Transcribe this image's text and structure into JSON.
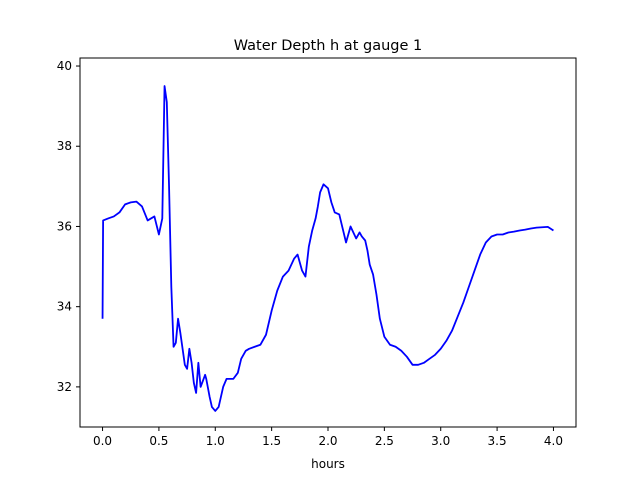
{
  "chart_data": {
    "type": "line",
    "title": "Water Depth h at gauge 1",
    "xlabel": "hours",
    "ylabel": "",
    "xlim": [
      -0.2,
      4.2
    ],
    "ylim": [
      31.0,
      40.2
    ],
    "xticks": [
      0.0,
      0.5,
      1.0,
      1.5,
      2.0,
      2.5,
      3.0,
      3.5,
      4.0
    ],
    "xtick_labels": [
      "0.0",
      "0.5",
      "1.0",
      "1.5",
      "2.0",
      "2.5",
      "3.0",
      "3.5",
      "4.0"
    ],
    "yticks": [
      32,
      34,
      36,
      38,
      40
    ],
    "ytick_labels": [
      "32",
      "34",
      "36",
      "38",
      "40"
    ],
    "grid": false,
    "series": [
      {
        "color": "#0000ff",
        "x": [
          0.0,
          0.005,
          0.05,
          0.1,
          0.15,
          0.2,
          0.25,
          0.3,
          0.35,
          0.4,
          0.43,
          0.46,
          0.5,
          0.53,
          0.55,
          0.57,
          0.59,
          0.61,
          0.63,
          0.65,
          0.67,
          0.69,
          0.71,
          0.73,
          0.75,
          0.77,
          0.79,
          0.81,
          0.83,
          0.85,
          0.87,
          0.89,
          0.91,
          0.92,
          0.93,
          0.95,
          0.97,
          1.0,
          1.03,
          1.07,
          1.1,
          1.13,
          1.16,
          1.2,
          1.23,
          1.27,
          1.3,
          1.35,
          1.4,
          1.45,
          1.5,
          1.55,
          1.6,
          1.65,
          1.7,
          1.73,
          1.77,
          1.8,
          1.83,
          1.86,
          1.89,
          1.91,
          1.93,
          1.96,
          2.0,
          2.03,
          2.06,
          2.1,
          2.13,
          2.16,
          2.2,
          2.25,
          2.28,
          2.3,
          2.33,
          2.35,
          2.37,
          2.4,
          2.43,
          2.46,
          2.5,
          2.55,
          2.6,
          2.65,
          2.7,
          2.75,
          2.8,
          2.85,
          2.9,
          2.95,
          3.0,
          3.05,
          3.1,
          3.15,
          3.2,
          3.25,
          3.3,
          3.35,
          3.4,
          3.45,
          3.5,
          3.55,
          3.6,
          3.65,
          3.7,
          3.75,
          3.8,
          3.85,
          3.9,
          3.95,
          4.0
        ],
        "y": [
          33.7,
          36.15,
          36.2,
          36.25,
          36.35,
          36.55,
          36.6,
          36.62,
          36.5,
          36.15,
          36.2,
          36.25,
          35.8,
          36.2,
          39.5,
          39.1,
          37.0,
          34.5,
          33.0,
          33.1,
          33.7,
          33.35,
          32.95,
          32.55,
          32.45,
          32.95,
          32.6,
          32.1,
          31.85,
          32.6,
          32.0,
          32.15,
          32.3,
          32.2,
          32.05,
          31.75,
          31.5,
          31.4,
          31.5,
          32.0,
          32.2,
          32.2,
          32.2,
          32.35,
          32.7,
          32.9,
          32.95,
          33.0,
          33.05,
          33.3,
          33.9,
          34.4,
          34.75,
          34.9,
          35.2,
          35.3,
          34.9,
          34.75,
          35.5,
          35.9,
          36.2,
          36.5,
          36.85,
          37.05,
          36.95,
          36.6,
          36.35,
          36.3,
          35.95,
          35.6,
          36.0,
          35.7,
          35.85,
          35.75,
          35.65,
          35.4,
          35.05,
          34.8,
          34.3,
          33.7,
          33.25,
          33.05,
          33.0,
          32.9,
          32.75,
          32.55,
          32.55,
          32.6,
          32.7,
          32.8,
          32.95,
          33.15,
          33.4,
          33.75,
          34.1,
          34.5,
          34.9,
          35.3,
          35.6,
          35.75,
          35.8,
          35.8,
          35.85,
          35.87,
          35.9,
          35.92,
          35.95,
          35.97,
          35.98,
          35.99,
          35.9
        ]
      }
    ]
  }
}
